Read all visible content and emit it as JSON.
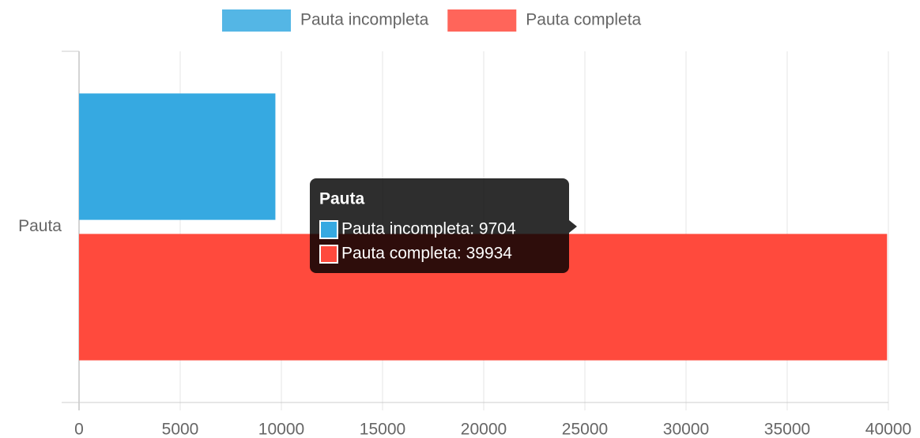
{
  "chart_data": {
    "type": "hbar",
    "categories": [
      "Pauta"
    ],
    "series": [
      {
        "name": "Pauta incompleta",
        "color": "#36a9e1",
        "values": [
          9704
        ]
      },
      {
        "name": "Pauta completa",
        "color": "#ff4a3d",
        "values": [
          39934
        ]
      }
    ],
    "xlim": [
      0,
      40000
    ],
    "xticks": [
      0,
      5000,
      10000,
      15000,
      20000,
      25000,
      30000,
      35000,
      40000
    ],
    "grid": true,
    "legend": "top",
    "tooltip": {
      "title": "Pauta",
      "lines": [
        "Pauta incompleta: 9704",
        "Pauta completa: 39934"
      ]
    }
  }
}
